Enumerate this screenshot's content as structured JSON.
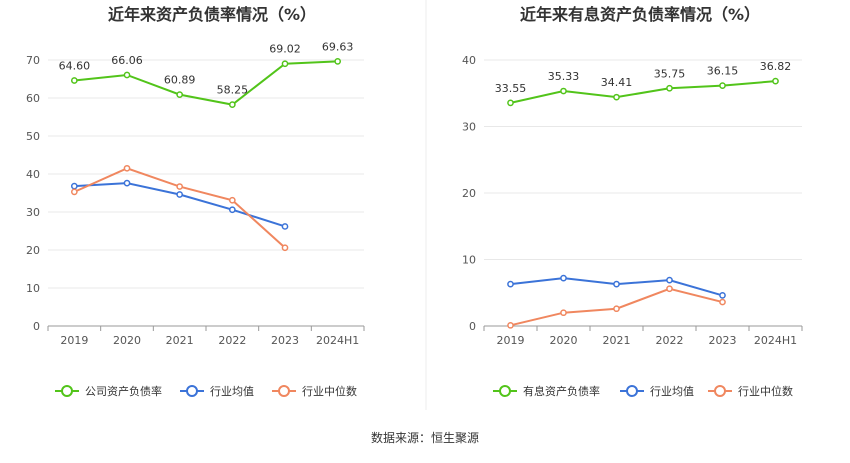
{
  "chart_data": [
    {
      "type": "line",
      "title": "近年来资产负债率情况（%）",
      "categories": [
        "2019",
        "2020",
        "2021",
        "2022",
        "2023",
        "2024H1"
      ],
      "ylim": [
        0,
        70
      ],
      "yticks": [
        "0",
        "10",
        "20",
        "30",
        "40",
        "50",
        "60",
        "70"
      ],
      "series": [
        {
          "name": "公司资产负债率",
          "color": "#52c41a",
          "values": [
            64.6,
            66.06,
            60.89,
            58.25,
            69.02,
            69.63
          ],
          "labels": [
            "64.60",
            "66.06",
            "60.89",
            "58.25",
            "69.02",
            "69.63"
          ]
        },
        {
          "name": "行业均值",
          "color": "#3b73d8",
          "values": [
            36.8,
            37.6,
            34.6,
            30.6,
            26.2,
            null
          ]
        },
        {
          "name": "行业中位数",
          "color": "#f0875f",
          "values": [
            35.3,
            41.5,
            36.7,
            33.1,
            20.6,
            null
          ]
        }
      ]
    },
    {
      "type": "line",
      "title": "近年来有息资产负债率情况（%）",
      "categories": [
        "2019",
        "2020",
        "2021",
        "2022",
        "2023",
        "2024H1"
      ],
      "ylim": [
        0,
        40
      ],
      "yticks": [
        "0",
        "10",
        "20",
        "30",
        "40"
      ],
      "series": [
        {
          "name": "有息资产负债率",
          "color": "#52c41a",
          "values": [
            33.55,
            35.33,
            34.41,
            35.75,
            36.15,
            36.82
          ],
          "labels": [
            "33.55",
            "35.33",
            "34.41",
            "35.75",
            "36.15",
            "36.82"
          ]
        },
        {
          "name": "行业均值",
          "color": "#3b73d8",
          "values": [
            6.3,
            7.2,
            6.3,
            6.9,
            4.6,
            null
          ]
        },
        {
          "name": "行业中位数",
          "color": "#f0875f",
          "values": [
            0.1,
            2.0,
            2.6,
            5.6,
            3.6,
            null
          ]
        }
      ]
    }
  ],
  "footer": {
    "source": "数据来源：恒生聚源"
  }
}
